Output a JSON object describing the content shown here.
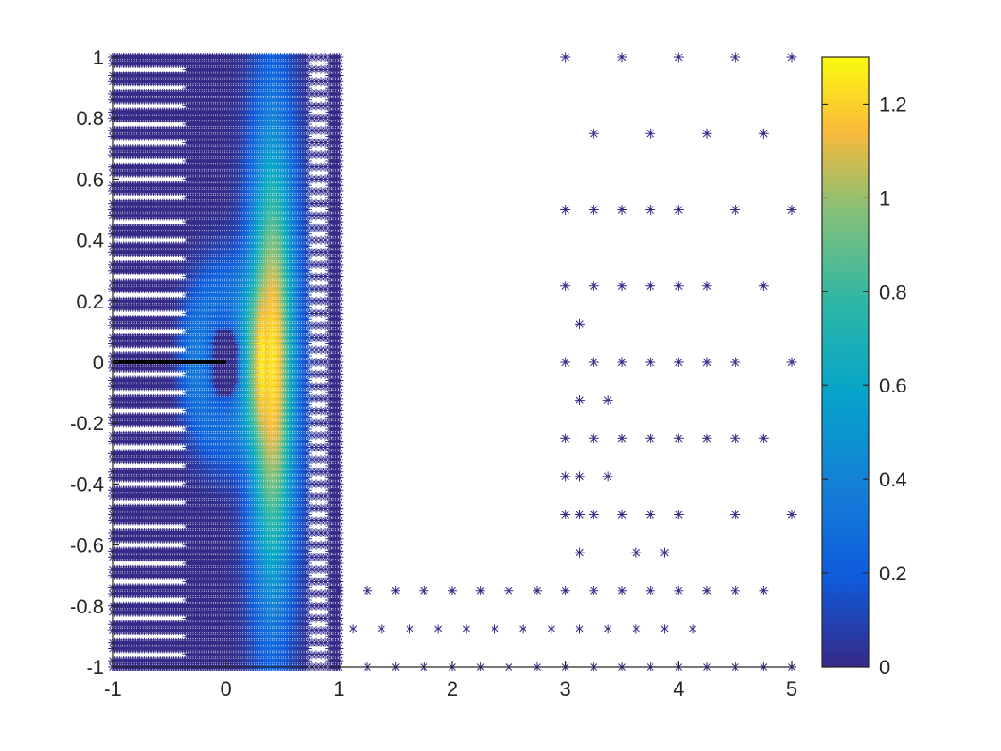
{
  "chart_data": {
    "type": "scatter",
    "title": "",
    "xlabel": "",
    "ylabel": "",
    "xlim": [
      -1,
      5
    ],
    "ylim": [
      -1,
      1
    ],
    "grid": false,
    "marker": "asterisk",
    "x_ticks": [
      -1,
      0,
      1,
      2,
      3,
      4,
      5
    ],
    "x_tick_labels": [
      "-1",
      "0",
      "1",
      "2",
      "3",
      "4",
      "5"
    ],
    "y_ticks": [
      -1,
      -0.8,
      -0.6,
      -0.4,
      -0.2,
      0,
      0.2,
      0.4,
      0.6,
      0.8,
      1
    ],
    "y_tick_labels": [
      "-1",
      "-0.8",
      "-0.6",
      "-0.4",
      "-0.2",
      "0",
      "0.2",
      "0.4",
      "0.6",
      "0.8",
      "1"
    ],
    "colormap": "parula",
    "colorbar": {
      "range": [
        0,
        1.3
      ],
      "ticks": [
        0,
        0.2,
        0.4,
        0.6,
        0.8,
        1,
        1.2
      ],
      "tick_labels": [
        "0",
        "0.2",
        "0.4",
        "0.6",
        "0.8",
        "1",
        "1.2"
      ]
    },
    "line_segment": {
      "x": [
        -1,
        0
      ],
      "y": [
        0,
        0
      ],
      "color": "#000000"
    },
    "dense_region": {
      "x_range": [
        -1,
        1
      ],
      "y_range": [
        -1,
        1
      ]
    },
    "bottom_strip_rows": [
      {
        "y": -0.75,
        "x_start": 1.0,
        "x_end": 4.75,
        "step": 0.25,
        "value": 0.0
      },
      {
        "y": -0.875,
        "x_start": 1.125,
        "x_end": 4.125,
        "step": 0.25,
        "value": 0.0
      },
      {
        "y": -1.0,
        "x_start": 1.0,
        "x_end": 5.0,
        "step": 0.25,
        "value": 0.0
      }
    ],
    "sparse_points": [
      {
        "x": 3.0,
        "y": 1.0,
        "value": 0.0
      },
      {
        "x": 3.5,
        "y": 1.0,
        "value": 0.0
      },
      {
        "x": 4.0,
        "y": 1.0,
        "value": 0.0
      },
      {
        "x": 4.5,
        "y": 1.0,
        "value": 0.0
      },
      {
        "x": 5.0,
        "y": 1.0,
        "value": 0.0
      },
      {
        "x": 3.25,
        "y": 0.75,
        "value": 0.0
      },
      {
        "x": 3.75,
        "y": 0.75,
        "value": 0.0
      },
      {
        "x": 4.25,
        "y": 0.75,
        "value": 0.0
      },
      {
        "x": 4.75,
        "y": 0.75,
        "value": 0.0
      },
      {
        "x": 3.0,
        "y": 0.5,
        "value": 0.0
      },
      {
        "x": 3.25,
        "y": 0.5,
        "value": 0.0
      },
      {
        "x": 3.5,
        "y": 0.5,
        "value": 0.0
      },
      {
        "x": 3.75,
        "y": 0.5,
        "value": 0.0
      },
      {
        "x": 4.0,
        "y": 0.5,
        "value": 0.0
      },
      {
        "x": 4.5,
        "y": 0.5,
        "value": 0.0
      },
      {
        "x": 5.0,
        "y": 0.5,
        "value": 0.0
      },
      {
        "x": 3.0,
        "y": 0.25,
        "value": 0.0
      },
      {
        "x": 3.25,
        "y": 0.25,
        "value": 0.0
      },
      {
        "x": 3.5,
        "y": 0.25,
        "value": 0.0
      },
      {
        "x": 3.75,
        "y": 0.25,
        "value": 0.0
      },
      {
        "x": 4.0,
        "y": 0.25,
        "value": 0.0
      },
      {
        "x": 4.25,
        "y": 0.25,
        "value": 0.0
      },
      {
        "x": 4.75,
        "y": 0.25,
        "value": 0.0
      },
      {
        "x": 3.125,
        "y": 0.125,
        "value": 0.0
      },
      {
        "x": 3.0,
        "y": 0.0,
        "value": 0.0
      },
      {
        "x": 3.25,
        "y": 0.0,
        "value": 0.0
      },
      {
        "x": 3.5,
        "y": 0.0,
        "value": 0.0
      },
      {
        "x": 3.75,
        "y": 0.0,
        "value": 0.0
      },
      {
        "x": 4.0,
        "y": 0.0,
        "value": 0.0
      },
      {
        "x": 4.25,
        "y": 0.0,
        "value": 0.0
      },
      {
        "x": 4.5,
        "y": 0.0,
        "value": 0.0
      },
      {
        "x": 5.0,
        "y": 0.0,
        "value": 0.0
      },
      {
        "x": 3.125,
        "y": -0.125,
        "value": 0.0
      },
      {
        "x": 3.375,
        "y": -0.125,
        "value": 0.0
      },
      {
        "x": 3.0,
        "y": -0.25,
        "value": 0.0
      },
      {
        "x": 3.25,
        "y": -0.25,
        "value": 0.0
      },
      {
        "x": 3.5,
        "y": -0.25,
        "value": 0.0
      },
      {
        "x": 3.75,
        "y": -0.25,
        "value": 0.0
      },
      {
        "x": 4.0,
        "y": -0.25,
        "value": 0.0
      },
      {
        "x": 4.25,
        "y": -0.25,
        "value": 0.0
      },
      {
        "x": 4.5,
        "y": -0.25,
        "value": 0.0
      },
      {
        "x": 4.75,
        "y": -0.25,
        "value": 0.0
      },
      {
        "x": 3.0,
        "y": -0.375,
        "value": 0.0
      },
      {
        "x": 3.125,
        "y": -0.375,
        "value": 0.0
      },
      {
        "x": 3.375,
        "y": -0.375,
        "value": 0.0
      },
      {
        "x": 3.0,
        "y": -0.5,
        "value": 0.0
      },
      {
        "x": 3.125,
        "y": -0.5,
        "value": 0.0
      },
      {
        "x": 3.25,
        "y": -0.5,
        "value": 0.0
      },
      {
        "x": 3.5,
        "y": -0.5,
        "value": 0.0
      },
      {
        "x": 3.75,
        "y": -0.5,
        "value": 0.0
      },
      {
        "x": 4.0,
        "y": -0.5,
        "value": 0.0
      },
      {
        "x": 4.5,
        "y": -0.5,
        "value": 0.0
      },
      {
        "x": 5.0,
        "y": -0.5,
        "value": 0.0
      },
      {
        "x": 3.125,
        "y": -0.625,
        "value": 0.0
      },
      {
        "x": 3.625,
        "y": -0.625,
        "value": 0.0
      },
      {
        "x": 3.875,
        "y": -0.625,
        "value": 0.0
      }
    ]
  }
}
